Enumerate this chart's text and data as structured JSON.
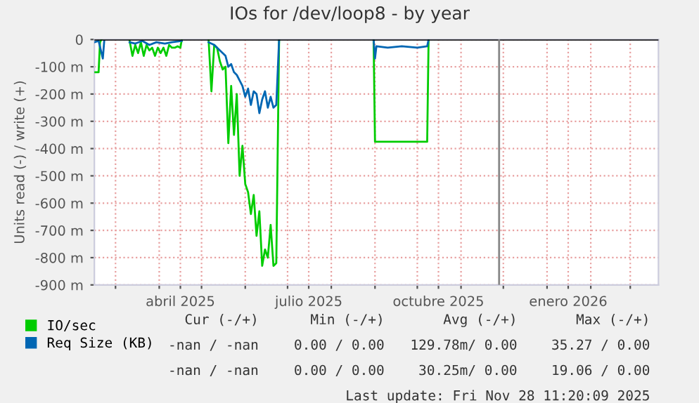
{
  "chart_data": {
    "type": "line",
    "title": "IOs for /dev/loop8 - by year",
    "ylabel": "Units read (-) / write (+)",
    "xlim": [
      "2025-02-14",
      "2026-03-21"
    ],
    "ylim": [
      -900,
      0
    ],
    "yticks": [
      0,
      {
        "value": -100,
        "label": "-100 m"
      },
      {
        "value": -200,
        "label": "-200 m"
      },
      {
        "value": -300,
        "label": "-300 m"
      },
      {
        "value": -400,
        "label": "-400 m"
      },
      {
        "value": -500,
        "label": "-500 m"
      },
      {
        "value": -600,
        "label": "-600 m"
      },
      {
        "value": -700,
        "label": "-700 m"
      },
      {
        "value": -800,
        "label": "-800 m"
      },
      {
        "value": -900,
        "label": "-900 m"
      }
    ],
    "xticks": [
      {
        "value": "2025-03-01",
        "label": null
      },
      {
        "value": "2025-04-01",
        "label": null
      },
      {
        "value": "2025-04-16",
        "label": "abril 2025"
      },
      {
        "value": "2025-05-01",
        "label": null
      },
      {
        "value": "2025-06-01",
        "label": null
      },
      {
        "value": "2025-07-01",
        "label": null
      },
      {
        "value": "2025-07-16",
        "label": "julio 2025"
      },
      {
        "value": "2025-08-01",
        "label": null
      },
      {
        "value": "2025-09-01",
        "label": null
      },
      {
        "value": "2025-10-01",
        "label": null
      },
      {
        "value": "2025-10-16",
        "label": "octubre 2025"
      },
      {
        "value": "2025-11-01",
        "label": null
      },
      {
        "value": "2025-12-01",
        "label": null
      },
      {
        "value": "2026-01-01",
        "label": null
      },
      {
        "value": "2026-01-16",
        "label": "enero 2026"
      },
      {
        "value": "2026-02-01",
        "label": null
      },
      {
        "value": "2026-03-01",
        "label": null
      }
    ],
    "grid": true,
    "legend": "bottom left",
    "line_style": "solid",
    "marker": "none",
    "ref_lines": [
      {
        "axis": "y",
        "value": 0,
        "label": null,
        "color": "#000000"
      },
      {
        "axis": "x",
        "value": "2025-11-28",
        "label": null,
        "color": "#888888"
      }
    ],
    "series": [
      {
        "name": "IO/sec",
        "color": "#00cc00",
        "x": [
          "2025-02-14",
          "2025-02-17",
          "2025-02-18",
          "2025-02-19",
          "2025-02-22",
          "2025-03-11",
          "2025-03-13",
          "2025-03-15",
          "2025-03-17",
          "2025-03-19",
          "2025-03-21",
          "2025-03-23",
          "2025-03-25",
          "2025-03-27",
          "2025-03-29",
          "2025-03-31",
          "2025-04-02",
          "2025-04-04",
          "2025-04-06",
          "2025-04-08",
          "2025-04-10",
          "2025-04-12",
          "2025-04-14",
          "2025-04-16",
          "2025-04-17",
          "2025-04-19",
          "2025-05-06",
          "2025-05-08",
          "2025-05-10",
          "2025-05-12",
          "2025-05-14",
          "2025-05-16",
          "2025-05-18",
          "2025-05-20",
          "2025-05-22",
          "2025-05-24",
          "2025-05-26",
          "2025-05-28",
          "2025-05-30",
          "2025-06-01",
          "2025-06-03",
          "2025-06-05",
          "2025-06-07",
          "2025-06-09",
          "2025-06-11",
          "2025-06-13",
          "2025-06-15",
          "2025-06-17",
          "2025-06-19",
          "2025-06-21",
          "2025-06-23",
          "2025-06-25",
          "2025-06-27",
          "2025-08-31",
          "2025-09-01",
          "2025-10-08",
          "2025-10-09"
        ],
        "values": [
          -120,
          -120,
          -10,
          0,
          null,
          -5,
          -60,
          -20,
          -50,
          -10,
          -60,
          -20,
          -40,
          -30,
          -60,
          -30,
          -50,
          -30,
          -60,
          -20,
          -30,
          -30,
          -25,
          -30,
          0,
          null,
          0,
          -190,
          -20,
          -30,
          -80,
          -110,
          -100,
          -380,
          -170,
          -350,
          -200,
          -500,
          -390,
          -530,
          -560,
          -640,
          -570,
          -720,
          -630,
          -830,
          -770,
          -800,
          -680,
          -830,
          -820,
          0,
          null,
          0,
          -375,
          -375,
          0
        ]
      },
      {
        "name": "Req Size (KB)",
        "color": "#0066b3",
        "x": [
          "2025-02-14",
          "2025-02-17",
          "2025-02-20",
          "2025-02-21",
          "2025-02-22",
          "2025-03-11",
          "2025-03-15",
          "2025-03-20",
          "2025-03-25",
          "2025-03-30",
          "2025-04-05",
          "2025-04-10",
          "2025-04-17",
          "2025-04-19",
          "2025-05-06",
          "2025-05-10",
          "2025-05-14",
          "2025-05-18",
          "2025-05-20",
          "2025-05-22",
          "2025-05-24",
          "2025-05-26",
          "2025-05-28",
          "2025-05-30",
          "2025-06-01",
          "2025-06-03",
          "2025-06-05",
          "2025-06-07",
          "2025-06-09",
          "2025-06-11",
          "2025-06-13",
          "2025-06-15",
          "2025-06-17",
          "2025-06-19",
          "2025-06-21",
          "2025-06-23",
          "2025-06-25",
          "2025-06-27",
          "2025-08-31",
          "2025-09-01",
          "2025-09-02",
          "2025-09-10",
          "2025-09-20",
          "2025-10-01",
          "2025-10-08",
          "2025-10-09"
        ],
        "values": [
          -10,
          -5,
          -70,
          -5,
          null,
          -10,
          -15,
          -5,
          -20,
          -10,
          -15,
          -10,
          -5,
          null,
          -10,
          -20,
          -40,
          -60,
          -100,
          -90,
          -120,
          -130,
          -150,
          -170,
          -210,
          -180,
          -240,
          -190,
          -200,
          -270,
          -220,
          -190,
          -250,
          -210,
          -250,
          -240,
          0,
          null,
          0,
          -70,
          -25,
          -30,
          -25,
          -30,
          -25,
          0
        ]
      }
    ],
    "annotations": [
      "Cur (-/+)",
      "Min (-/+)",
      "Avg (-/+)",
      "Max (-/+)",
      "-nan / -nan",
      "0.00 / 0.00",
      "129.78m/ 0.00",
      "35.27 / 0.00",
      "-nan / -nan",
      "0.00 / 0.00",
      "30.25m/ 0.00",
      "19.06 / 0.00",
      "Last update: Fri Nov 28 11:20:09 2025"
    ]
  }
}
